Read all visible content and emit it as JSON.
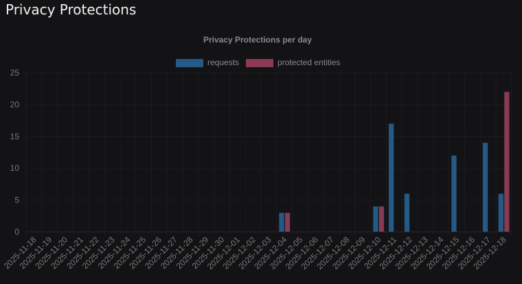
{
  "page": {
    "title": "Privacy Protections"
  },
  "chart_data": {
    "type": "bar",
    "title": "Privacy Protections per day",
    "xlabel": "",
    "ylabel": "",
    "ylim": [
      0,
      25
    ],
    "yticks": [
      0,
      5,
      10,
      15,
      20,
      25
    ],
    "grid": true,
    "legend": "top",
    "categories": [
      "2025-11-18",
      "2025-11-19",
      "2025-11-20",
      "2025-11-21",
      "2025-11-22",
      "2025-11-23",
      "2025-11-24",
      "2025-11-25",
      "2025-11-26",
      "2025-11-27",
      "2025-11-28",
      "2025-11-29",
      "2025-11-30",
      "2025-12-01",
      "2025-12-02",
      "2025-12-03",
      "2025-12-04",
      "2025-12-05",
      "2025-12-06",
      "2025-12-07",
      "2025-12-08",
      "2025-12-09",
      "2025-12-10",
      "2025-12-11",
      "2025-12-12",
      "2025-12-13",
      "2025-12-14",
      "2025-12-15",
      "2025-12-16",
      "2025-12-17",
      "2025-12-18"
    ],
    "series": [
      {
        "name": "requests",
        "color": "#245a85",
        "values": [
          0,
          0,
          0,
          0,
          0,
          0,
          0,
          0,
          0,
          0,
          0,
          0,
          0,
          0,
          0,
          0,
          3,
          0,
          0,
          0,
          0,
          0,
          4,
          17,
          6,
          0,
          0,
          12,
          0,
          14,
          6
        ]
      },
      {
        "name": "protected entities",
        "color": "#8a3a52",
        "values": [
          0,
          0,
          0,
          0,
          0,
          0,
          0,
          0,
          0,
          0,
          0,
          0,
          0,
          0,
          0,
          0,
          3,
          0,
          0,
          0,
          0,
          0,
          4,
          0,
          0,
          0,
          0,
          0,
          0,
          0,
          22
        ]
      }
    ]
  }
}
